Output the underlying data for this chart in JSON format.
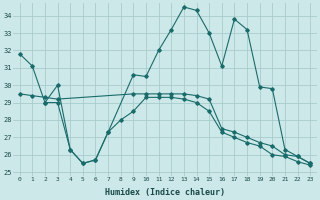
{
  "background_color": "#cde8e8",
  "grid_color": "#a8cccc",
  "line_color": "#1a6b6b",
  "xlabel": "Humidex (Indice chaleur)",
  "ylim": [
    24.8,
    34.7
  ],
  "xlim": [
    -0.5,
    23.5
  ],
  "yticks": [
    25,
    26,
    27,
    28,
    29,
    30,
    31,
    32,
    33,
    34
  ],
  "xticks": [
    0,
    1,
    2,
    3,
    4,
    5,
    6,
    7,
    8,
    9,
    10,
    11,
    12,
    13,
    14,
    15,
    16,
    17,
    18,
    19,
    20,
    21,
    22,
    23
  ],
  "series": [
    {
      "x": [
        0,
        1,
        2,
        3,
        4,
        5,
        6,
        7,
        9,
        10,
        11,
        12,
        13,
        14,
        15,
        16,
        17,
        18,
        19,
        20,
        21,
        22,
        23
      ],
      "y": [
        31.8,
        31.1,
        29.0,
        29.0,
        26.3,
        25.5,
        25.7,
        27.3,
        30.6,
        30.5,
        32.0,
        33.2,
        34.5,
        34.3,
        33.0,
        31.1,
        33.8,
        33.2,
        29.9,
        29.8,
        26.3,
        25.9,
        25.5
      ]
    },
    {
      "x": [
        0,
        1,
        2,
        3,
        9,
        10,
        11,
        12,
        13,
        14,
        15,
        16,
        17,
        18,
        19,
        20,
        21,
        22,
        23
      ],
      "y": [
        29.5,
        29.4,
        29.3,
        29.2,
        29.5,
        29.5,
        29.5,
        29.5,
        29.5,
        29.4,
        29.2,
        27.5,
        27.3,
        27.0,
        26.7,
        26.5,
        26.0,
        25.9,
        25.5
      ]
    },
    {
      "x": [
        2,
        3,
        4,
        5,
        6,
        7,
        8,
        9,
        10,
        11,
        12,
        13,
        14,
        15,
        16,
        17,
        18,
        19,
        20,
        21,
        22,
        23
      ],
      "y": [
        29.0,
        30.0,
        26.3,
        25.5,
        25.7,
        27.3,
        28.0,
        28.5,
        29.3,
        29.3,
        29.3,
        29.2,
        29.0,
        28.5,
        27.3,
        27.0,
        26.7,
        26.5,
        26.0,
        25.9,
        25.6,
        25.4
      ]
    }
  ]
}
